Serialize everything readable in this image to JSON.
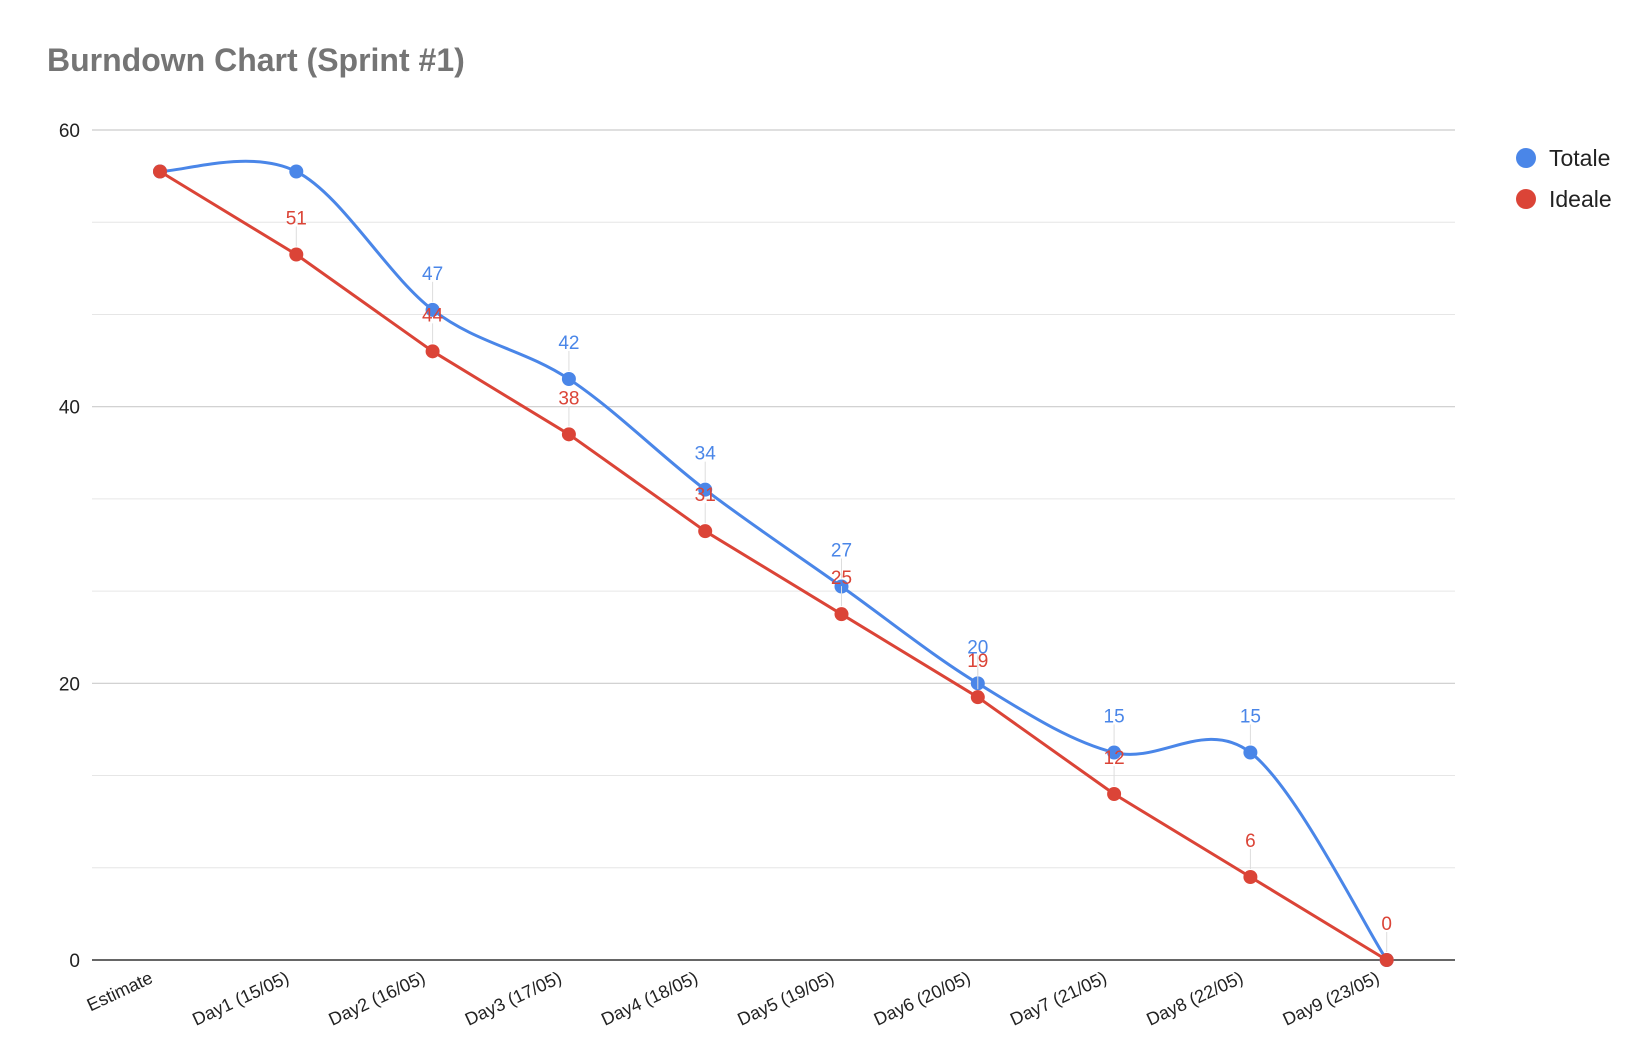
{
  "chart_data": {
    "type": "line",
    "title": "Burndown Chart (Sprint #1)",
    "categories": [
      "Estimate",
      "Day1 (15/05)",
      "Day2 (16/05)",
      "Day3 (17/05)",
      "Day4 (18/05)",
      "Day5 (19/05)",
      "Day6 (20/05)",
      "Day7 (21/05)",
      "Day8 (22/05)",
      "Day9 (23/05)"
    ],
    "series": [
      {
        "name": "Totale",
        "color": "#4a86e8",
        "values": [
          57,
          57,
          47,
          42,
          34,
          27,
          20,
          15,
          15,
          0
        ],
        "labels": [
          "",
          "",
          "47",
          "42",
          "34",
          "27",
          "20",
          "15",
          "15",
          ""
        ],
        "smooth": true
      },
      {
        "name": "Ideale",
        "color": "#db4437",
        "values": [
          57,
          51,
          44,
          38,
          31,
          25,
          19,
          12,
          6,
          0
        ],
        "labels": [
          "",
          "51",
          "44",
          "38",
          "31",
          "25",
          "19",
          "12",
          "6",
          "0"
        ],
        "smooth": false
      }
    ],
    "xlabel": "",
    "ylabel": "",
    "ylim": [
      0,
      60
    ],
    "yticks": [
      0,
      20,
      40,
      60
    ],
    "minor_gridlines": true,
    "legend": "right"
  }
}
